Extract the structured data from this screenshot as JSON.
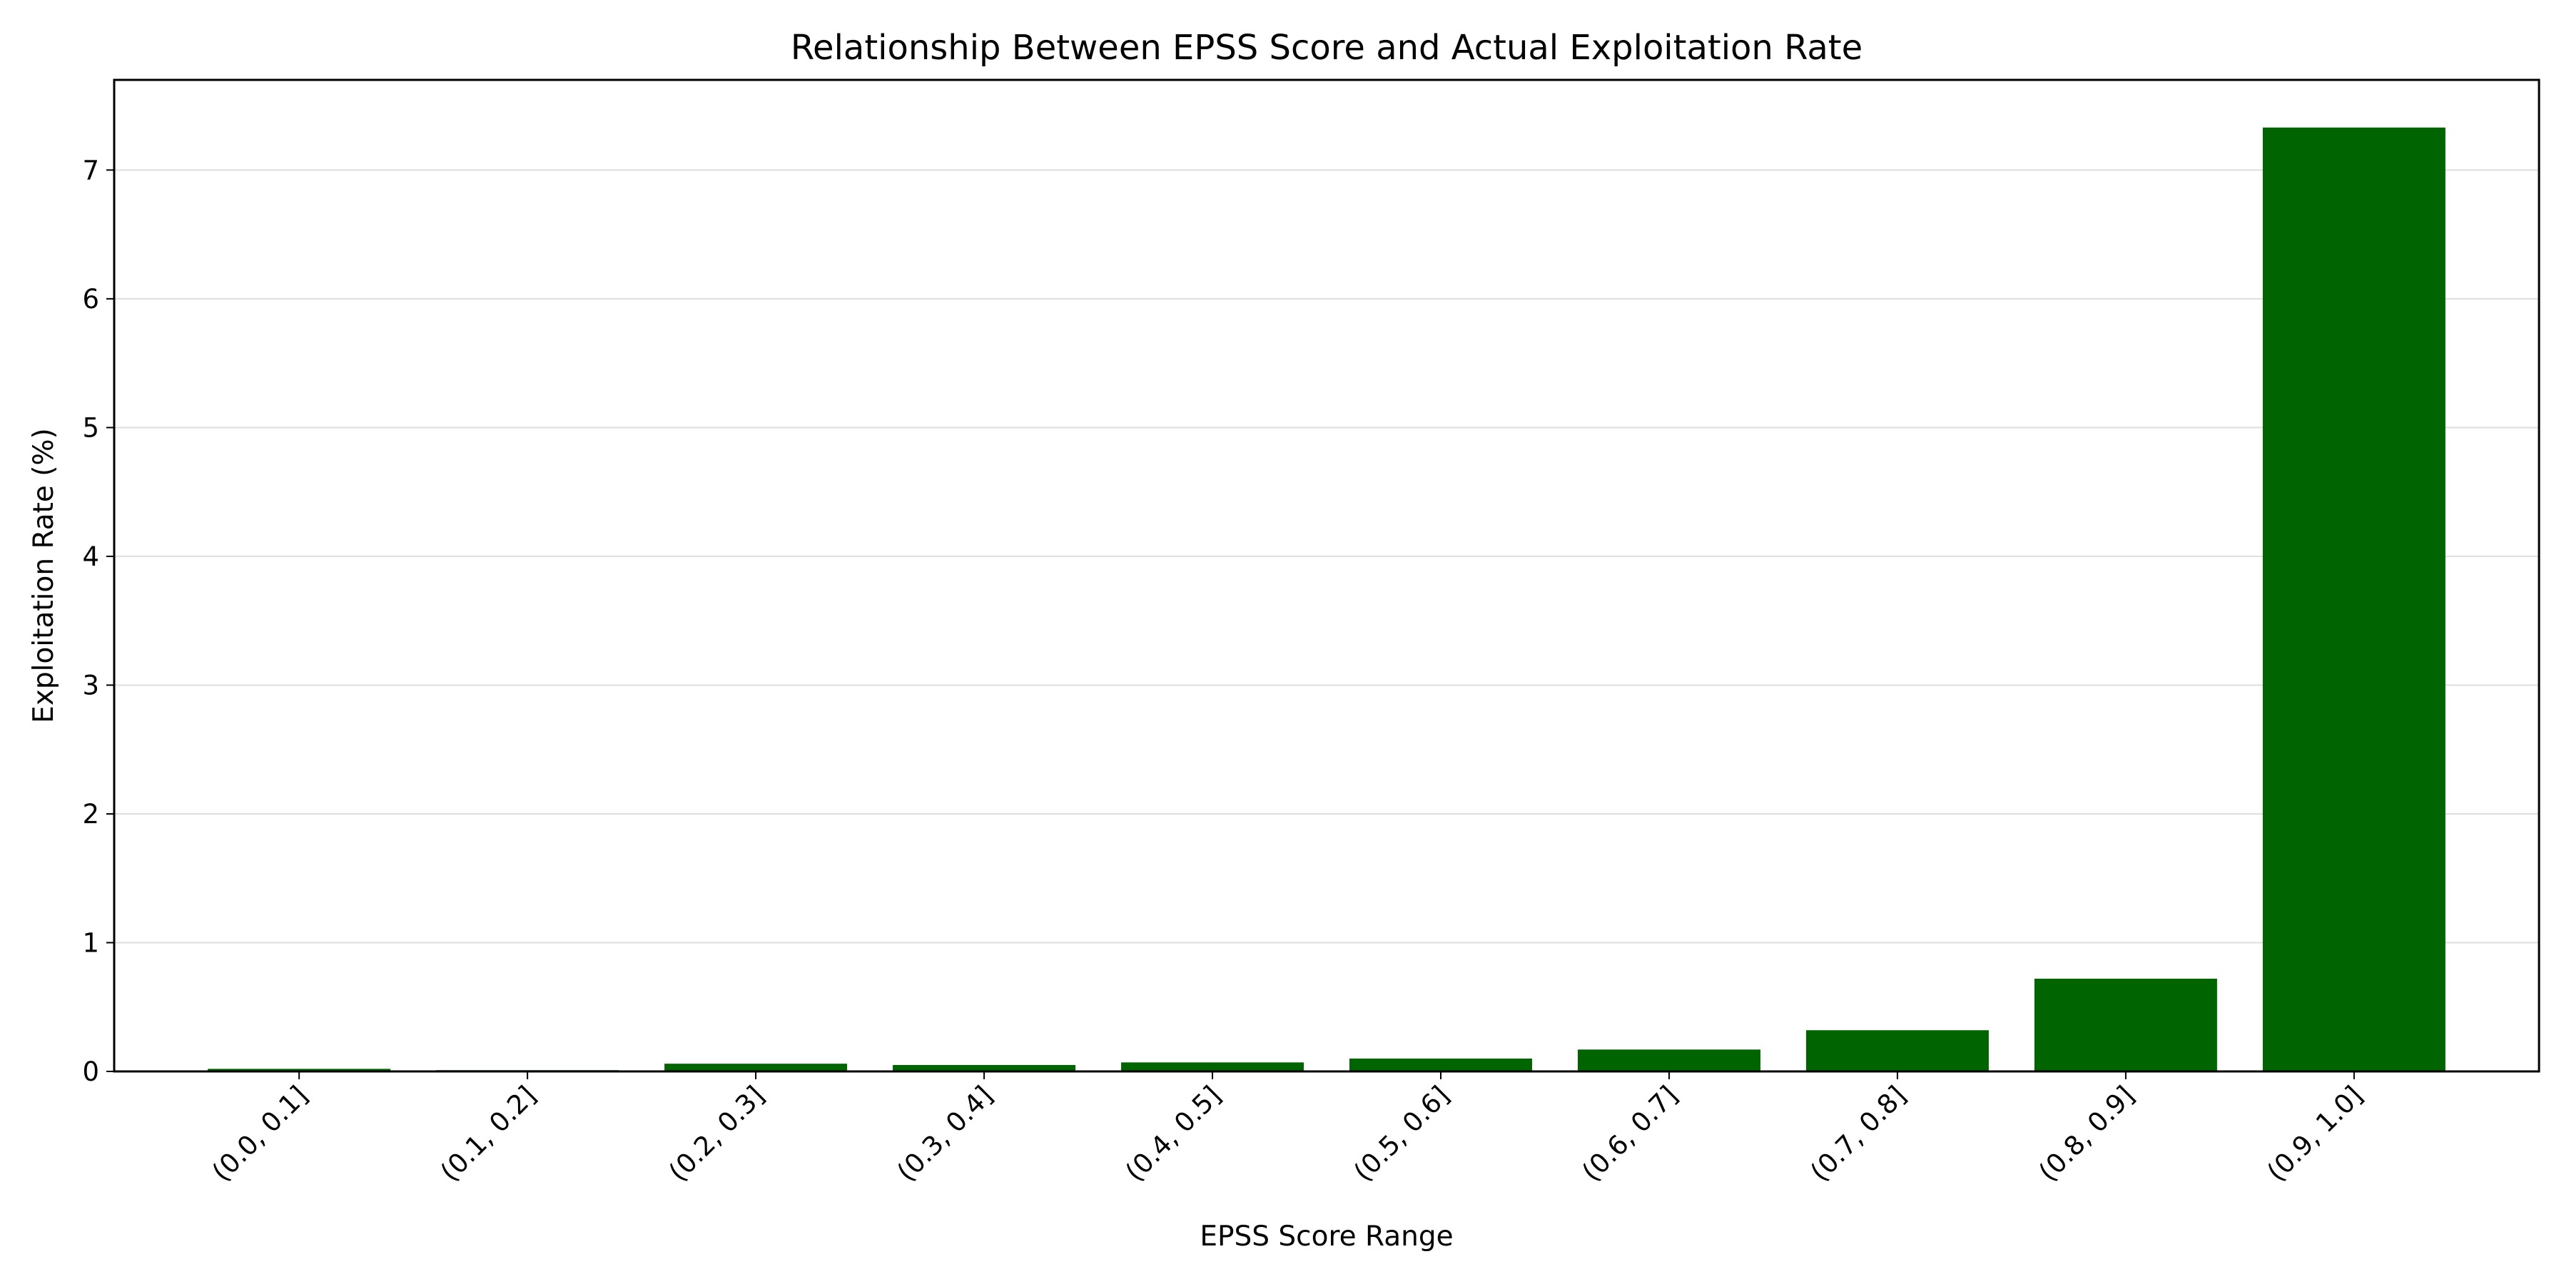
{
  "chart_data": {
    "type": "bar",
    "title": "Relationship Between EPSS Score and Actual Exploitation Rate",
    "xlabel": "EPSS Score Range",
    "ylabel": "Exploitation Rate (%)",
    "categories": [
      "(0.0, 0.1]",
      "(0.1, 0.2]",
      "(0.2, 0.3]",
      "(0.3, 0.4]",
      "(0.4, 0.5]",
      "(0.5, 0.6]",
      "(0.6, 0.7]",
      "(0.7, 0.8]",
      "(0.8, 0.9]",
      "(0.9, 1.0]"
    ],
    "values": [
      0.02,
      0.01,
      0.06,
      0.05,
      0.07,
      0.1,
      0.17,
      0.32,
      0.72,
      7.33
    ],
    "ylim": [
      0,
      7.7
    ],
    "yticks": [
      0,
      1,
      2,
      3,
      4,
      5,
      6,
      7
    ],
    "grid": "y-axis only",
    "bar_color": "#006400",
    "tick_label_rotation": 45
  }
}
